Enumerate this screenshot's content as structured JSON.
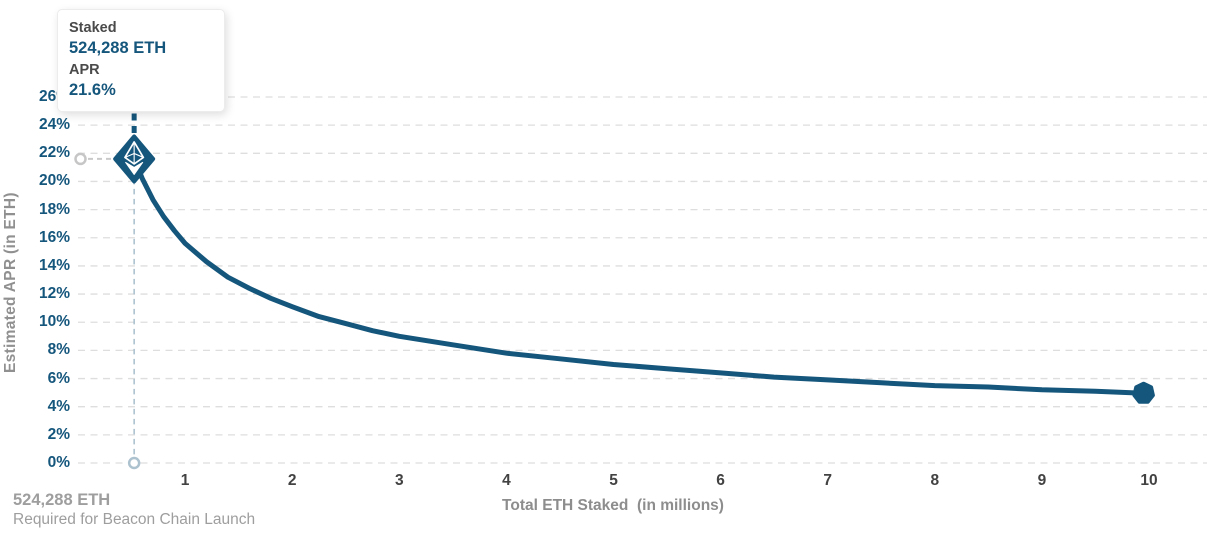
{
  "tooltip": {
    "staked_label": "Staked",
    "staked_value": "524,288 ETH",
    "apr_label": "APR",
    "apr_value": "21.6%"
  },
  "axes": {
    "y_title": "Estimated APR (in ETH)",
    "x_title": "Total ETH Staked  (in millions)",
    "y_ticks": [
      "0%",
      "2%",
      "4%",
      "6%",
      "8%",
      "10%",
      "12%",
      "14%",
      "16%",
      "18%",
      "20%",
      "22%",
      "24%",
      "26%"
    ],
    "x_ticks": [
      "1",
      "2",
      "3",
      "4",
      "5",
      "6",
      "7",
      "8",
      "9",
      "10"
    ]
  },
  "footnote": {
    "value": "524,288 ETH",
    "caption": "Required for Beacon Chain Launch"
  },
  "colors": {
    "line": "#15567c",
    "y_tick_blue": "#15567c",
    "x_tick_dark": "#424242",
    "axis_title_gray": "#8d8d8d",
    "footnote_gray": "#9e9e9e",
    "gridline": "#dedede",
    "guide_blue_light": "#adc2cf",
    "guide_gray": "#c9c9c9",
    "marker_glyph": "#ffffff"
  },
  "chart_data": {
    "type": "line",
    "title": "",
    "xlabel": "Total ETH Staked (in millions)",
    "ylabel": "Estimated APR (in ETH)",
    "xlim": [
      0,
      10.55
    ],
    "ylim": [
      0,
      26
    ],
    "y_tick_step": 2,
    "grid": "horizontal-dashed",
    "legend": "none",
    "series": [
      {
        "name": "Estimated APR (in ETH)",
        "points": [
          [
            0.524288,
            21.6
          ],
          [
            0.6,
            20.2
          ],
          [
            0.7,
            18.7
          ],
          [
            0.8,
            17.5
          ],
          [
            0.9,
            16.5
          ],
          [
            1.0,
            15.6
          ],
          [
            1.2,
            14.3
          ],
          [
            1.4,
            13.2
          ],
          [
            1.6,
            12.4
          ],
          [
            1.8,
            11.7
          ],
          [
            2.0,
            11.1
          ],
          [
            2.25,
            10.4
          ],
          [
            2.5,
            9.9
          ],
          [
            2.75,
            9.4
          ],
          [
            3.0,
            9.0
          ],
          [
            3.5,
            8.4
          ],
          [
            4.0,
            7.8
          ],
          [
            4.5,
            7.4
          ],
          [
            5.0,
            7.0
          ],
          [
            5.5,
            6.7
          ],
          [
            6.0,
            6.4
          ],
          [
            6.5,
            6.1
          ],
          [
            7.0,
            5.9
          ],
          [
            7.5,
            5.7
          ],
          [
            8.0,
            5.5
          ],
          [
            8.5,
            5.4
          ],
          [
            9.0,
            5.2
          ],
          [
            9.5,
            5.1
          ],
          [
            9.95,
            4.96
          ]
        ]
      }
    ],
    "highlight_point": {
      "x": 0.524288,
      "y": 21.6,
      "staked": "524,288 ETH",
      "apr": "21.6%"
    },
    "end_point": {
      "x": 9.95,
      "y": 4.96
    }
  }
}
